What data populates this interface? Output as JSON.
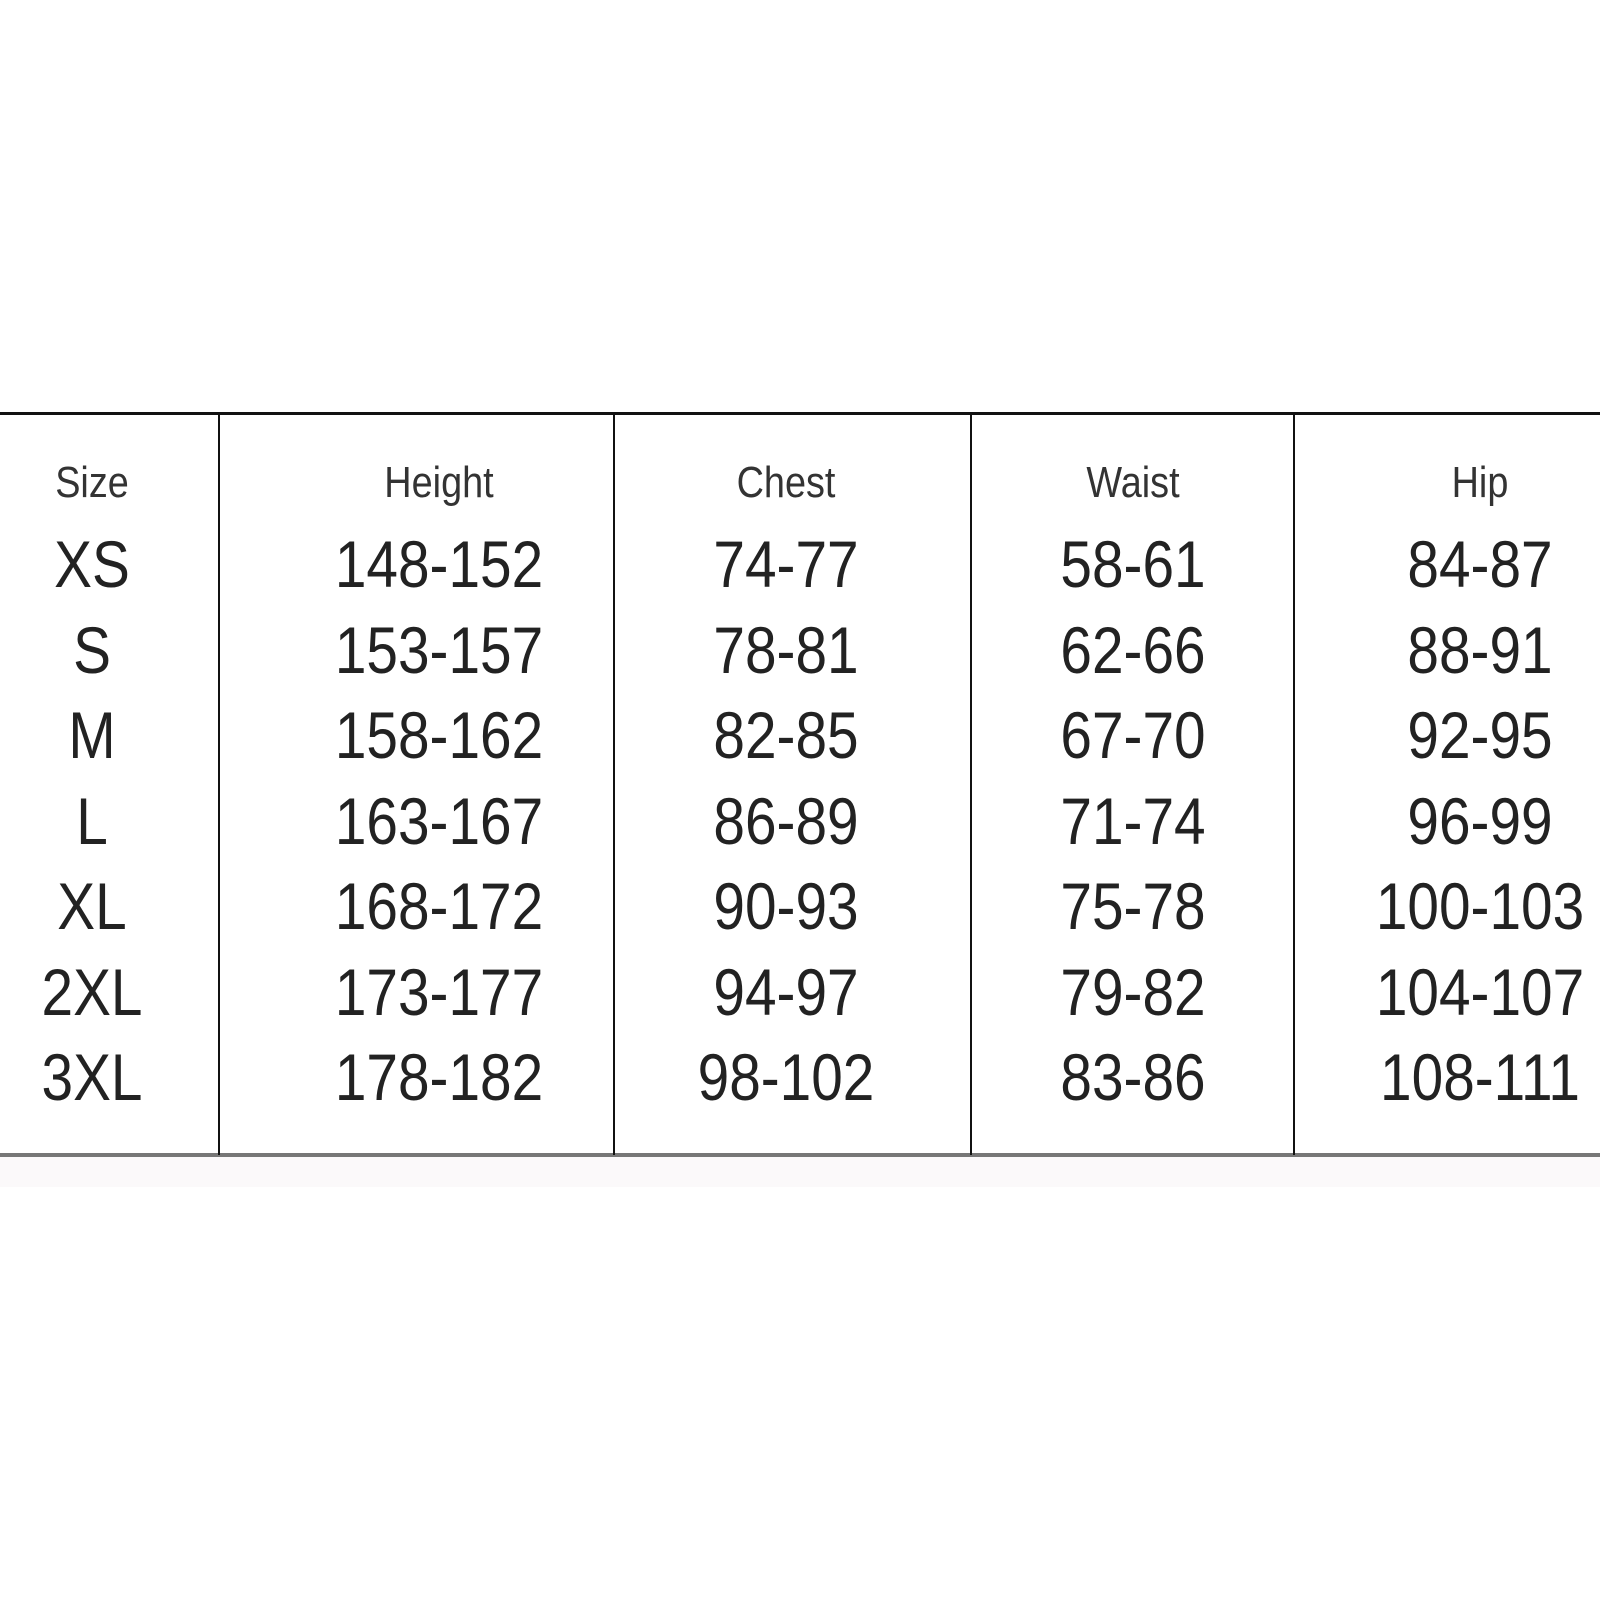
{
  "size_chart": {
    "columns": [
      "Size",
      "Height",
      "Chest",
      "Waist",
      "Hip"
    ],
    "rows": [
      [
        "XS",
        "148-152",
        "74-77",
        "58-61",
        "84-87"
      ],
      [
        "S",
        "153-157",
        "78-81",
        "62-66",
        "88-91"
      ],
      [
        "M",
        "158-162",
        "82-85",
        "67-70",
        "92-95"
      ],
      [
        "L",
        "163-167",
        "86-89",
        "71-74",
        "96-99"
      ],
      [
        "XL",
        "168-172",
        "90-93",
        "75-78",
        "100-103"
      ],
      [
        "2XL",
        "173-177",
        "94-97",
        "79-82",
        "104-107"
      ],
      [
        "3XL",
        "178-182",
        "98-102",
        "83-86",
        "108-111"
      ]
    ]
  }
}
